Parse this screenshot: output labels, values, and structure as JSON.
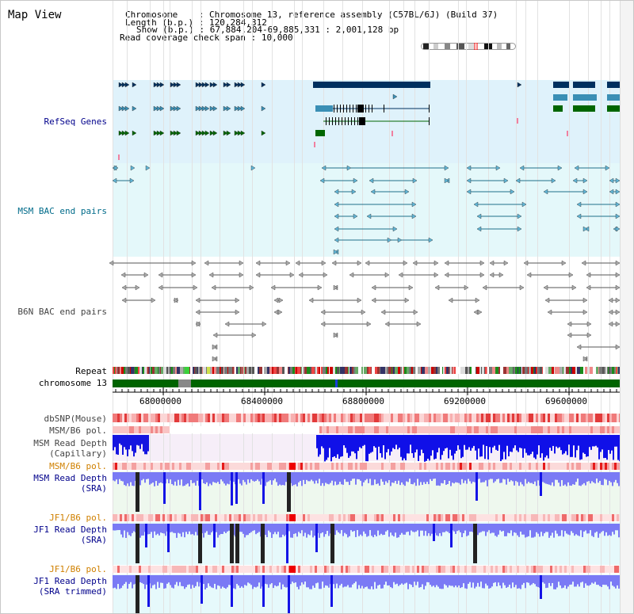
{
  "page": {
    "title": "Map View"
  },
  "info": {
    "chromosome_key": "Chromosome",
    "chromosome_value": "Chromosome 13, reference assembly (C57BL/6J) (Build 37)",
    "length_key": "Length (b.p.)",
    "length_value": "120,284,312",
    "show_key": "Show (b.p.)",
    "show_value": "67,884,204-69,885,331 : 2,001,128 bp",
    "coverage_key": "Read coverage check span",
    "coverage_value": "10,000"
  },
  "tracks": {
    "refseq": "RefSeq Genes",
    "msm_bac": "MSM BAC end pairs",
    "b6n_bac": "B6N BAC end pairs",
    "repeat": "Repeat",
    "chromosome": "chromosome 13",
    "dbsnp": "dbSNP(Mouse)",
    "msm_b6_pol_1": "MSM/B6 pol.",
    "msm_depth_cap_1": "MSM Read Depth",
    "msm_depth_cap_2": "(Capillary)",
    "msm_b6_pol_2": "MSM/B6 pol.",
    "msm_depth_sra_1": "MSM Read Depth",
    "msm_depth_sra_2": "(SRA)",
    "jf1_b6_pol_1": "JF1/B6 pol.",
    "jf1_depth_sra_1": "JF1 Read Depth",
    "jf1_depth_sra_2": "(SRA)",
    "jf1_b6_pol_2": "JF1/B6 pol.",
    "jf1_depth_trim_1": "JF1 Read Depth",
    "jf1_depth_trim_2": "(SRA trimmed)"
  },
  "axis": {
    "ticks": [
      "68000000",
      "68400000",
      "68800000",
      "69200000",
      "69600000"
    ]
  },
  "colors": {
    "navy": "#00008b",
    "msm_teal": "#006b8a",
    "gray": "#444444",
    "orange": "#d08000",
    "refseq_bg": "#dff2fb",
    "msm_bg": "#e4f8fa",
    "chromosome_green": "#006400"
  }
}
